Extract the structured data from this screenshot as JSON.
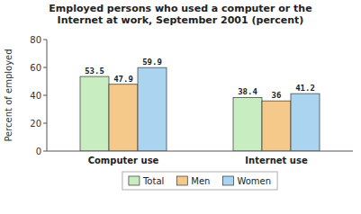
{
  "chart_data": {
    "type": "bar",
    "title": "Employed persons who used a computer or the\nInternet at work, September 2001 (percent)",
    "categories": [
      "Computer use",
      "Internet use"
    ],
    "series": [
      {
        "name": "Total",
        "color": "#c8edc0",
        "values": [
          53.5,
          38.4
        ]
      },
      {
        "name": "Men",
        "color": "#f5c98a",
        "values": [
          47.9,
          36.0
        ]
      },
      {
        "name": "Women",
        "color": "#aad4f0",
        "values": [
          59.9,
          41.2
        ]
      }
    ],
    "ylabel": "Percent of employed",
    "ylim": [
      0,
      80
    ],
    "yticks": [
      0,
      20,
      40,
      60,
      80
    ],
    "grid": false,
    "legend": "bottom",
    "data_labels": true
  }
}
